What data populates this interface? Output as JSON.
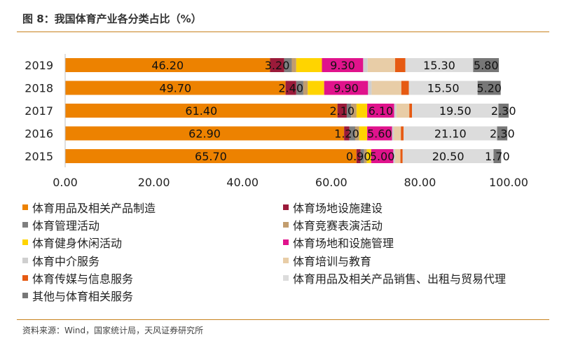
{
  "header": {
    "title": "图 8：我国体育产业各分类占比（%）"
  },
  "footer": {
    "source": "资料来源：Wind，国家统计局，天风证券研究所"
  },
  "chart_data": {
    "type": "bar",
    "orientation": "horizontal",
    "stacked": true,
    "categories": [
      "2019",
      "2018",
      "2017",
      "2016",
      "2015"
    ],
    "xlim": [
      0,
      100
    ],
    "xticks": [
      "0.00",
      "20.00",
      "40.00",
      "60.00",
      "80.00",
      "100.00"
    ],
    "grid": false,
    "legend_position": "bottom",
    "series": [
      {
        "name": "体育用品及相关产品制造",
        "color": "#ed8200",
        "labeled": true,
        "values": [
          46.2,
          49.7,
          61.4,
          62.9,
          65.7
        ],
        "labels": [
          "46.20",
          "49.70",
          "61.40",
          "62.90",
          "65.70"
        ]
      },
      {
        "name": "体育场地设施建设",
        "color": "#9b1b3a",
        "labeled": true,
        "values": [
          3.2,
          2.4,
          2.1,
          1.2,
          0.9
        ],
        "labels": [
          "3.20",
          "2.40",
          "2.10",
          "1.20",
          "0.90"
        ]
      },
      {
        "name": "体育管理活动",
        "color": "#7f7f7f",
        "labeled": false,
        "values": [
          1.7,
          1.6,
          1.0,
          1.3,
          0.8
        ]
      },
      {
        "name": "体育竞赛表演活动",
        "color": "#c29d6e",
        "labeled": false,
        "values": [
          1.0,
          1.0,
          1.2,
          0.9,
          0.6
        ]
      },
      {
        "name": "体育健身休闲活动",
        "color": "#ffd400",
        "labeled": false,
        "values": [
          5.8,
          3.7,
          2.4,
          1.8,
          1.0
        ]
      },
      {
        "name": "体育场地和设施管理",
        "color": "#e0138c",
        "labeled": true,
        "values": [
          9.3,
          9.9,
          6.1,
          5.6,
          5.0
        ],
        "labels": [
          "9.30",
          "9.90",
          "6.10",
          "5.60",
          "5.00"
        ]
      },
      {
        "name": "体育中介服务",
        "color": "#cfcfcf",
        "labeled": false,
        "values": [
          1.0,
          0.8,
          0.5,
          0.4,
          0.4
        ]
      },
      {
        "name": "体育培训与教育",
        "color": "#e8cda7",
        "labeled": false,
        "values": [
          6.2,
          6.7,
          2.9,
          1.6,
          1.2
        ]
      },
      {
        "name": "体育传媒与信息服务",
        "color": "#e65a12",
        "labeled": false,
        "values": [
          2.3,
          1.7,
          0.6,
          0.6,
          0.5
        ]
      },
      {
        "name": "体育用品及相关产品销售、出租与贸易代理",
        "color": "#dcdcdc",
        "labeled": true,
        "values": [
          15.3,
          15.5,
          19.5,
          21.1,
          20.5
        ],
        "labels": [
          "15.30",
          "15.50",
          "19.50",
          "21.10",
          "20.50"
        ]
      },
      {
        "name": "其他与体育相关服务",
        "color": "#777777",
        "labeled": true,
        "values": [
          5.8,
          5.2,
          2.3,
          2.3,
          1.7
        ],
        "labels": [
          "5.80",
          "5.20",
          "2.30",
          "2.30",
          "1.70"
        ]
      }
    ]
  }
}
